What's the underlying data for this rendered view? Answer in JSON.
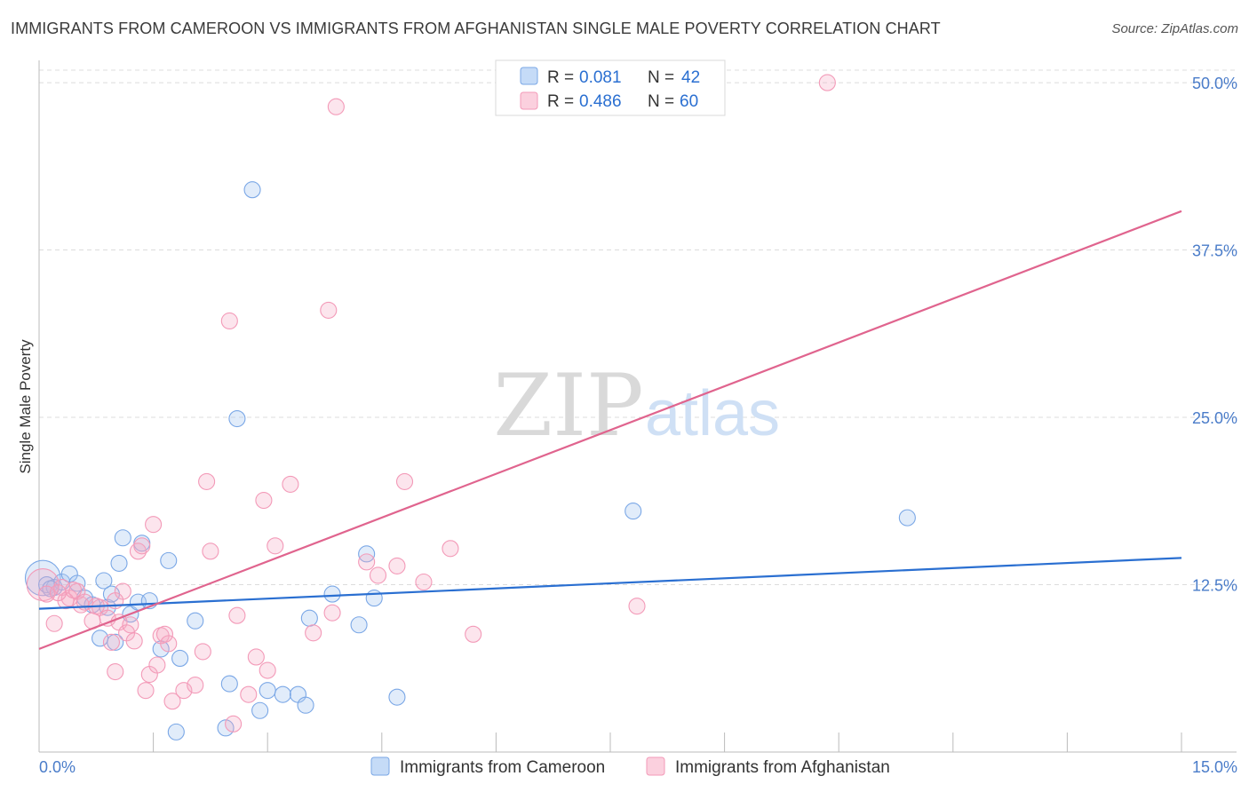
{
  "title": "IMMIGRANTS FROM CAMEROON VS IMMIGRANTS FROM AFGHANISTAN SINGLE MALE POVERTY CORRELATION CHART",
  "source": "Source: ZipAtlas.com",
  "watermark": {
    "zip": "ZIP",
    "atlas": "atlas"
  },
  "chart_data": {
    "type": "scatter",
    "title": "IMMIGRANTS FROM CAMEROON VS IMMIGRANTS FROM AFGHANISTAN SINGLE MALE POVERTY CORRELATION CHART",
    "xlabel": "",
    "ylabel": "Single Male Poverty",
    "xlim": [
      0,
      15
    ],
    "ylim": [
      0,
      51
    ],
    "x_tick_labels": [
      "0.0%",
      "15.0%"
    ],
    "y_ticks": [
      12.5,
      25.0,
      37.5,
      50.0
    ],
    "y_tick_labels": [
      "12.5%",
      "25.0%",
      "37.5%",
      "50.0%"
    ],
    "grid": true,
    "legend_position": "top-center",
    "legend": {
      "rows": [
        {
          "r_label": "R =",
          "r_value": "0.081",
          "n_label": "N =",
          "n_value": "42"
        },
        {
          "r_label": "R =",
          "r_value": "0.486",
          "n_label": "N =",
          "n_value": "60"
        }
      ]
    },
    "series": [
      {
        "name": "Immigrants from Cameroon",
        "color": "#7aa7e6",
        "line_color": "#2a6fd1",
        "trend": {
          "x": [
            0,
            15
          ],
          "y": [
            10.7,
            14.5
          ]
        },
        "points": [
          [
            0.05,
            13.0,
            2.2
          ],
          [
            0.1,
            12.5,
            1
          ],
          [
            0.2,
            12.3,
            1
          ],
          [
            0.3,
            12.7,
            1
          ],
          [
            0.4,
            13.3,
            1
          ],
          [
            0.5,
            12.6,
            1
          ],
          [
            0.6,
            11.5,
            1
          ],
          [
            0.7,
            11.0,
            1
          ],
          [
            0.8,
            8.5,
            1
          ],
          [
            0.85,
            12.8,
            1
          ],
          [
            0.9,
            10.8,
            1
          ],
          [
            0.95,
            11.8,
            1
          ],
          [
            1.0,
            8.2,
            1
          ],
          [
            1.05,
            14.1,
            1
          ],
          [
            1.1,
            16.0,
            1
          ],
          [
            1.2,
            10.3,
            1
          ],
          [
            1.3,
            11.2,
            1
          ],
          [
            1.35,
            15.6,
            1
          ],
          [
            1.45,
            11.3,
            1
          ],
          [
            1.6,
            7.7,
            1
          ],
          [
            1.7,
            14.3,
            1
          ],
          [
            1.8,
            1.5,
            1
          ],
          [
            1.85,
            7.0,
            1
          ],
          [
            2.05,
            9.8,
            1
          ],
          [
            2.45,
            1.8,
            1
          ],
          [
            2.5,
            5.1,
            1
          ],
          [
            2.6,
            24.9,
            1
          ],
          [
            2.8,
            42.0,
            1
          ],
          [
            2.9,
            3.1,
            1
          ],
          [
            3.0,
            4.6,
            1
          ],
          [
            3.2,
            4.3,
            1
          ],
          [
            3.4,
            4.3,
            1
          ],
          [
            3.5,
            3.5,
            1
          ],
          [
            3.55,
            10.0,
            1
          ],
          [
            3.85,
            11.8,
            1
          ],
          [
            4.2,
            9.5,
            1
          ],
          [
            4.3,
            14.8,
            1
          ],
          [
            4.4,
            11.5,
            1
          ],
          [
            4.7,
            4.1,
            1
          ],
          [
            7.8,
            18.0,
            1
          ],
          [
            11.4,
            17.5,
            1
          ],
          [
            0.15,
            12.2,
            1
          ]
        ]
      },
      {
        "name": "Immigrants from Afghanistan",
        "color": "#f39ab8",
        "line_color": "#e0648e",
        "trend": {
          "x": [
            0,
            15
          ],
          "y": [
            7.7,
            40.4
          ]
        },
        "points": [
          [
            0.05,
            12.5,
            2.0
          ],
          [
            0.1,
            11.8,
            1
          ],
          [
            0.2,
            9.6,
            1
          ],
          [
            0.3,
            12.3,
            1
          ],
          [
            0.4,
            11.5,
            1
          ],
          [
            0.5,
            12.0,
            1
          ],
          [
            0.55,
            11.0,
            1
          ],
          [
            0.6,
            11.2,
            1
          ],
          [
            0.7,
            9.8,
            1
          ],
          [
            0.8,
            10.8,
            1
          ],
          [
            0.9,
            10.0,
            1
          ],
          [
            0.95,
            8.2,
            1
          ],
          [
            1.0,
            6.0,
            1
          ],
          [
            1.05,
            9.7,
            1
          ],
          [
            1.1,
            12.0,
            1
          ],
          [
            1.15,
            8.9,
            1
          ],
          [
            1.2,
            9.5,
            1
          ],
          [
            1.25,
            8.3,
            1
          ],
          [
            1.3,
            15.0,
            1
          ],
          [
            1.35,
            15.4,
            1
          ],
          [
            1.4,
            4.6,
            1
          ],
          [
            1.45,
            5.8,
            1
          ],
          [
            1.5,
            17.0,
            1
          ],
          [
            1.55,
            6.5,
            1
          ],
          [
            1.6,
            8.7,
            1
          ],
          [
            1.65,
            8.8,
            1
          ],
          [
            1.7,
            8.1,
            1
          ],
          [
            1.75,
            3.8,
            1
          ],
          [
            1.9,
            4.6,
            1
          ],
          [
            2.05,
            5.0,
            1
          ],
          [
            2.15,
            7.5,
            1
          ],
          [
            2.2,
            20.2,
            1
          ],
          [
            2.25,
            15.0,
            1
          ],
          [
            2.5,
            32.2,
            1
          ],
          [
            2.55,
            2.1,
            1
          ],
          [
            2.6,
            10.2,
            1
          ],
          [
            2.75,
            4.3,
            1
          ],
          [
            2.85,
            7.1,
            1
          ],
          [
            2.95,
            18.8,
            1
          ],
          [
            3.0,
            6.1,
            1
          ],
          [
            3.1,
            15.4,
            1
          ],
          [
            3.3,
            20.0,
            1
          ],
          [
            3.6,
            8.9,
            1
          ],
          [
            3.8,
            33.0,
            1
          ],
          [
            3.85,
            10.4,
            1
          ],
          [
            3.9,
            48.2,
            1
          ],
          [
            4.3,
            14.2,
            1
          ],
          [
            4.45,
            13.2,
            1
          ],
          [
            4.7,
            13.9,
            1
          ],
          [
            4.8,
            20.2,
            1
          ],
          [
            5.05,
            12.7,
            1
          ],
          [
            5.4,
            15.2,
            1
          ],
          [
            5.7,
            8.8,
            1
          ],
          [
            7.85,
            10.9,
            1
          ],
          [
            10.35,
            50.0,
            1
          ],
          [
            0.35,
            11.3,
            1
          ],
          [
            0.45,
            12.1,
            1
          ],
          [
            0.75,
            10.9,
            1
          ],
          [
            1.0,
            11.3,
            1
          ],
          [
            0.25,
            11.9,
            1
          ]
        ]
      }
    ],
    "legend_bottom": [
      "Immigrants from Cameroon",
      "Immigrants from Afghanistan"
    ]
  }
}
